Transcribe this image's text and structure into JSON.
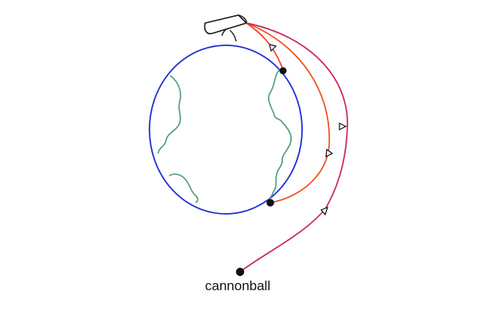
{
  "labels": {
    "cannonball": "cannonball"
  },
  "colors": {
    "background": "#ffffff",
    "earth_outline": "#1f2fd6",
    "continents": "#4f9a7c",
    "cannon": "#1a1a1a",
    "short_trajectory": "#ff3b1f",
    "medium_trajectory": "#f0501a",
    "long_trajectory": "#c9245f",
    "cannonball": "#111111",
    "arrow_fill": "#ffffff",
    "arrow_stroke": "#111111"
  },
  "icons": {
    "cannon": "cannon-icon",
    "cannonball": "filled-circle",
    "direction_marker": "triangle-arrow"
  }
}
